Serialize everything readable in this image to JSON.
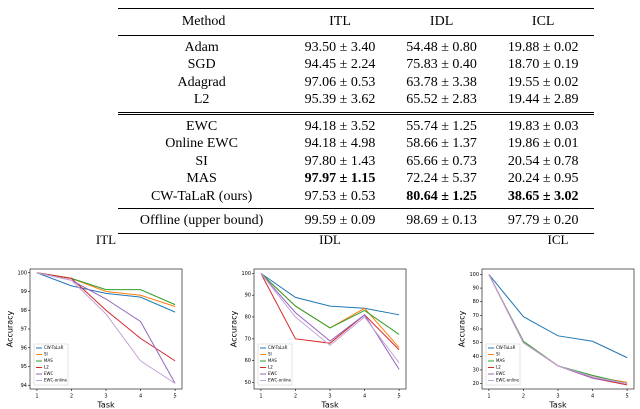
{
  "table": {
    "header": [
      "Method",
      "ITL",
      "IDL",
      "ICL"
    ],
    "groups": [
      [
        [
          "Adam",
          "93.50 ± 3.40",
          "54.48 ± 0.80",
          "19.88 ± 0.02"
        ],
        [
          "SGD",
          "94.45 ± 2.24",
          "75.83 ± 0.40",
          "18.70 ± 0.19"
        ],
        [
          "Adagrad",
          "97.06 ± 0.53",
          "63.78 ± 3.38",
          "19.55 ± 0.02"
        ],
        [
          "L2",
          "95.39 ± 3.62",
          "65.52 ± 2.83",
          "19.44 ± 2.89"
        ]
      ],
      [
        [
          "EWC",
          "94.18 ± 3.52",
          "55.74 ± 1.25",
          "19.83 ± 0.03"
        ],
        [
          "Online EWC",
          "94.18 ± 4.98",
          "58.66 ± 1.37",
          "19.86 ± 0.01"
        ],
        [
          "SI",
          "97.80 ± 1.43",
          "65.66 ± 0.73",
          "20.54 ± 0.78"
        ],
        [
          "MAS",
          {
            "text": "97.97 ± 1.15",
            "bold": true
          },
          "72.24 ± 5.37",
          "20.24 ± 0.95"
        ],
        [
          "CW-TaLaR (ours)",
          "97.53 ± 0.53",
          {
            "text": "80.64 ± 1.25",
            "bold": true
          },
          {
            "text": "38.65 ± 3.02",
            "bold": true
          }
        ]
      ],
      [
        [
          "Offline (upper bound)",
          "99.59 ± 0.09",
          "98.69 ± 0.13",
          "97.79 ± 0.20"
        ]
      ]
    ]
  },
  "chart_data": [
    {
      "type": "line",
      "title": "ITL",
      "x_label": "Task",
      "y_label": "Accuracy",
      "x": [
        1,
        2,
        3,
        4,
        5
      ],
      "xlim": [
        0.8,
        5.2
      ],
      "xticks": [
        1,
        2,
        3,
        4,
        5
      ],
      "ylim": [
        93.8,
        100.2
      ],
      "yticks": [
        94,
        95,
        96,
        97,
        98,
        99,
        100
      ],
      "legend": "lower left",
      "series": [
        {
          "name": "CW-TaLaR",
          "color": "#1f77b4",
          "values": [
            100,
            99.3,
            98.9,
            98.7,
            97.9
          ]
        },
        {
          "name": "SI",
          "color": "#ff7f0e",
          "values": [
            100,
            99.7,
            99.0,
            98.8,
            98.2
          ]
        },
        {
          "name": "MAS",
          "color": "#2ca02c",
          "values": [
            100,
            99.7,
            99.1,
            99.1,
            98.3
          ]
        },
        {
          "name": "L2",
          "color": "#d62728",
          "values": [
            100,
            99.7,
            98.0,
            96.5,
            95.3
          ]
        },
        {
          "name": "EWC",
          "color": "#9467bd",
          "values": [
            100,
            99.6,
            98.6,
            97.4,
            94.1
          ]
        },
        {
          "name": "EWC-online",
          "color": "#c5a3d9",
          "values": [
            100,
            99.6,
            97.8,
            95.3,
            94.1
          ]
        }
      ]
    },
    {
      "type": "line",
      "title": "IDL",
      "x_label": "Task",
      "y_label": "Accuracy",
      "x": [
        1,
        2,
        3,
        4,
        5
      ],
      "xlim": [
        0.8,
        5.2
      ],
      "xticks": [
        1,
        2,
        3,
        4,
        5
      ],
      "ylim": [
        47,
        102
      ],
      "yticks": [
        50,
        60,
        70,
        80,
        90,
        100
      ],
      "legend": "lower left",
      "series": [
        {
          "name": "CW-TaLaR",
          "color": "#1f77b4",
          "values": [
            100,
            89,
            85,
            84,
            81
          ]
        },
        {
          "name": "SI",
          "color": "#ff7f0e",
          "values": [
            100,
            85,
            75,
            84,
            66
          ]
        },
        {
          "name": "MAS",
          "color": "#2ca02c",
          "values": [
            100,
            85,
            75,
            83,
            72
          ]
        },
        {
          "name": "L2",
          "color": "#d62728",
          "values": [
            100,
            70,
            68,
            81,
            65
          ]
        },
        {
          "name": "EWC",
          "color": "#9467bd",
          "values": [
            100,
            82,
            69,
            81,
            56
          ]
        },
        {
          "name": "EWC-online",
          "color": "#c5a3d9",
          "values": [
            100,
            80,
            67,
            80,
            59
          ]
        }
      ]
    },
    {
      "type": "line",
      "title": "ICL",
      "x_label": "Task",
      "y_label": "Accuracy",
      "x": [
        1,
        2,
        3,
        4,
        5
      ],
      "xlim": [
        0.8,
        5.2
      ],
      "xticks": [
        1,
        2,
        3,
        4,
        5
      ],
      "ylim": [
        16,
        104
      ],
      "yticks": [
        20,
        30,
        40,
        50,
        60,
        70,
        80,
        90,
        100
      ],
      "legend": "lower left",
      "series": [
        {
          "name": "CW-TaLaR",
          "color": "#1f77b4",
          "values": [
            100,
            69,
            55,
            51,
            39
          ]
        },
        {
          "name": "SI",
          "color": "#ff7f0e",
          "values": [
            100,
            50,
            33,
            25,
            21
          ]
        },
        {
          "name": "MAS",
          "color": "#2ca02c",
          "values": [
            100,
            51,
            33,
            26,
            20
          ]
        },
        {
          "name": "L2",
          "color": "#d62728",
          "values": [
            100,
            50,
            33,
            24,
            19
          ]
        },
        {
          "name": "EWC",
          "color": "#9467bd",
          "values": [
            100,
            50,
            33,
            24,
            20
          ]
        },
        {
          "name": "EWC-online",
          "color": "#c5a3d9",
          "values": [
            100,
            50,
            33,
            25,
            20
          ]
        }
      ]
    }
  ]
}
